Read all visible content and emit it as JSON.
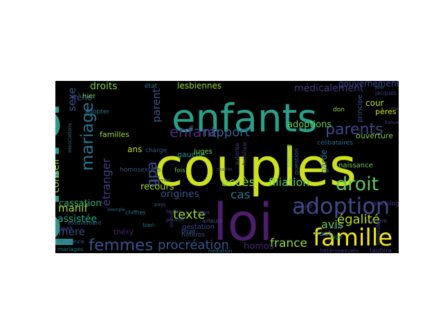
{
  "wordcloud": {
    "words": [
      {
        "text": "pma",
        "color": "#2a9a8c"
      },
      {
        "text": "couples",
        "color": "#cde11d"
      },
      {
        "text": "enfants",
        "color": "#27a08a"
      },
      {
        "text": "loi",
        "color": "#4c1d6b"
      },
      {
        "text": "famille",
        "color": "#f1e51d"
      },
      {
        "text": "adoption",
        "color": "#3e4a89"
      },
      {
        "text": "droit",
        "color": "#5ec962"
      },
      {
        "text": "mariage",
        "color": "#2c718e"
      },
      {
        "text": "parents",
        "color": "#3f4889"
      },
      {
        "text": "femmes",
        "color": "#3a528b"
      },
      {
        "text": "enfant",
        "color": "#4e2d80"
      },
      {
        "text": "gpa",
        "color": "#3b528b"
      },
      {
        "text": "procréation",
        "color": "#3a548c"
      },
      {
        "text": "rapport",
        "color": "#34608d"
      },
      {
        "text": "filiation",
        "color": "#60ca60"
      },
      {
        "text": "accès",
        "color": "#8fd744"
      },
      {
        "text": "égalité",
        "color": "#b5de2b"
      },
      {
        "text": "france",
        "color": "#90d743"
      },
      {
        "text": "avis",
        "color": "#73d056"
      },
      {
        "text": "texte",
        "color": "#9bd93c"
      },
      {
        "text": "cas",
        "color": "#2a788e"
      },
      {
        "text": "étranger",
        "color": "#433e85"
      },
      {
        "text": "conseil",
        "color": "#90d743"
      },
      {
        "text": "manif",
        "color": "#a5db36"
      },
      {
        "text": "médicalement",
        "color": "#443983"
      },
      {
        "text": "parent",
        "color": "#3b528b"
      },
      {
        "text": "sexe",
        "color": "#3e4c8a"
      },
      {
        "text": "droits",
        "color": "#75d054"
      },
      {
        "text": "mère",
        "color": "#3e4989"
      },
      {
        "text": "origines",
        "color": "#3b528b"
      },
      {
        "text": "recours",
        "color": "#a2da37"
      },
      {
        "text": "homos",
        "color": "#482878"
      },
      {
        "text": "assistée",
        "color": "#22a884"
      },
      {
        "text": "cassation",
        "color": "#35b779"
      },
      {
        "text": "adoptions",
        "color": "#6ccd5a"
      },
      {
        "text": "lesbiennes",
        "color": "#9dd93b"
      },
      {
        "text": "gouvernement",
        "color": "#3f4889"
      },
      {
        "text": "cour",
        "color": "#b8de29"
      },
      {
        "text": "pères",
        "color": "#d8e219"
      },
      {
        "text": "ouverture",
        "color": "#7ad151"
      },
      {
        "text": "familles",
        "color": "#9dd93b"
      },
      {
        "text": "garde",
        "color": "#2c728e"
      },
      {
        "text": "irène",
        "color": "#3a548c"
      },
      {
        "text": "théry",
        "color": "#482475"
      },
      {
        "text": "ans",
        "color": "#b5de2b"
      },
      {
        "text": "gauche",
        "color": "#21918c"
      },
      {
        "text": "homosexuels",
        "color": "#3b528b"
      },
      {
        "text": "gestation",
        "color": "#3f4788"
      },
      {
        "text": "naissance",
        "color": "#6ccd5a"
      },
      {
        "text": "haut",
        "color": "#31688e"
      },
      {
        "text": "sociologue",
        "color": "#46327e"
      },
      {
        "text": "hétérosexuels",
        "color": "#46337e"
      },
      {
        "text": "taubira",
        "color": "#443b84"
      },
      {
        "text": "résidence",
        "color": "#3b528b"
      },
      {
        "text": "mariages",
        "color": "#2c728e"
      },
      {
        "text": "mouvement",
        "color": "#33638d"
      },
      {
        "text": "hier",
        "color": "#6ece58"
      },
      {
        "text": "adopter",
        "color": "#2c728e"
      },
      {
        "text": "état",
        "color": "#2c728e"
      },
      {
        "text": "juges",
        "color": "#6ccd5a"
      },
      {
        "text": "hétéros",
        "color": "#3b528b"
      },
      {
        "text": "célibataires",
        "color": "#31688e"
      },
      {
        "text": "don",
        "color": "#90d743"
      },
      {
        "text": "jour",
        "color": "#2c728e"
      },
      {
        "text": "principe",
        "color": "#3a548c"
      },
      {
        "text": "jacques",
        "color": "#433e85"
      },
      {
        "text": "fois",
        "color": "#5ec962"
      },
      {
        "text": "beau",
        "color": "#3e4989"
      },
      {
        "text": "binet",
        "color": "#3b528b"
      },
      {
        "text": "projet",
        "color": "#443983"
      },
      {
        "text": "juge",
        "color": "#21918c"
      },
      {
        "text": "non",
        "color": "#3b528b"
      },
      {
        "text": "question",
        "color": "#3b528b"
      },
      {
        "text": "hollande",
        "color": "#3e4989"
      },
      {
        "text": "charge",
        "color": "#3a548c"
      },
      {
        "text": "alternée",
        "color": "#3e4989"
      },
      {
        "text": "médiation",
        "color": "#31688e"
      },
      {
        "text": "bien",
        "color": "#2c728e"
      },
      {
        "text": "pouvoir",
        "color": "#3b528b"
      },
      {
        "text": "devait",
        "color": "#482878"
      },
      {
        "text": "ailleurs",
        "color": "#3a548c"
      },
      {
        "text": "gays",
        "color": "#3e4989"
      },
      {
        "text": "sperme",
        "color": "#6ccd5a"
      },
      {
        "text": "matière",
        "color": "#3e4989"
      },
      {
        "text": "chiffres",
        "color": "#2c728e"
      },
      {
        "text": "oui",
        "color": "#3e4989"
      },
      {
        "text": "pays",
        "color": "#3b528b"
      },
      {
        "text": "autorise",
        "color": "#3e4989"
      },
      {
        "text": "familiale",
        "color": "#443983"
      },
      {
        "text": "associations",
        "color": "#2c728e"
      },
      {
        "text": "français",
        "color": "#3e4989"
      },
      {
        "text": "exemple",
        "color": "#2c728e"
      },
      {
        "text": "mairie",
        "color": "#3e4989"
      },
      {
        "text": "femme",
        "color": "#3e4989"
      }
    ]
  }
}
